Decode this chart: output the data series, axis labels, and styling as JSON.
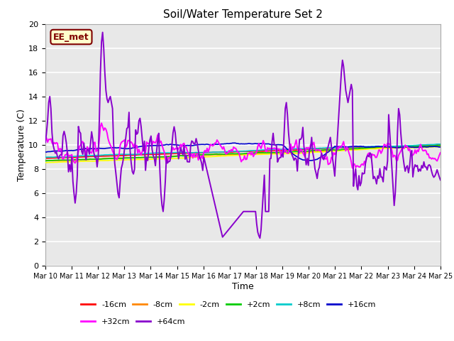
{
  "title": "Soil/Water Temperature Set 2",
  "xlabel": "Time",
  "ylabel": "Temperature (C)",
  "ylim": [
    0,
    20
  ],
  "yticks": [
    0,
    2,
    4,
    6,
    8,
    10,
    12,
    14,
    16,
    18,
    20
  ],
  "xlim": [
    0,
    15
  ],
  "xtick_labels": [
    "Mar 10",
    "Mar 11",
    "Mar 12",
    "Mar 13",
    "Mar 14",
    "Mar 15",
    "Mar 16",
    "Mar 17",
    "Mar 18",
    "Mar 19",
    "Mar 20",
    "Mar 21",
    "Mar 22",
    "Mar 23",
    "Mar 24",
    "Mar 25"
  ],
  "annotation_text": "EE_met",
  "annotation_bg": "#ffffcc",
  "annotation_border": "#800000",
  "plot_bg": "#e8e8e8",
  "fig_bg": "#ffffff",
  "grid_color": "#ffffff",
  "series": [
    {
      "label": "-16cm",
      "color": "#ff0000"
    },
    {
      "label": "-8cm",
      "color": "#ff8800"
    },
    {
      "label": "-2cm",
      "color": "#ffff00"
    },
    {
      "label": "+2cm",
      "color": "#00cc00"
    },
    {
      "label": "+8cm",
      "color": "#00cccc"
    },
    {
      "label": "+16cm",
      "color": "#0000cc"
    },
    {
      "label": "+32cm",
      "color": "#ff00ff"
    },
    {
      "label": "+64cm",
      "color": "#8800cc"
    }
  ]
}
